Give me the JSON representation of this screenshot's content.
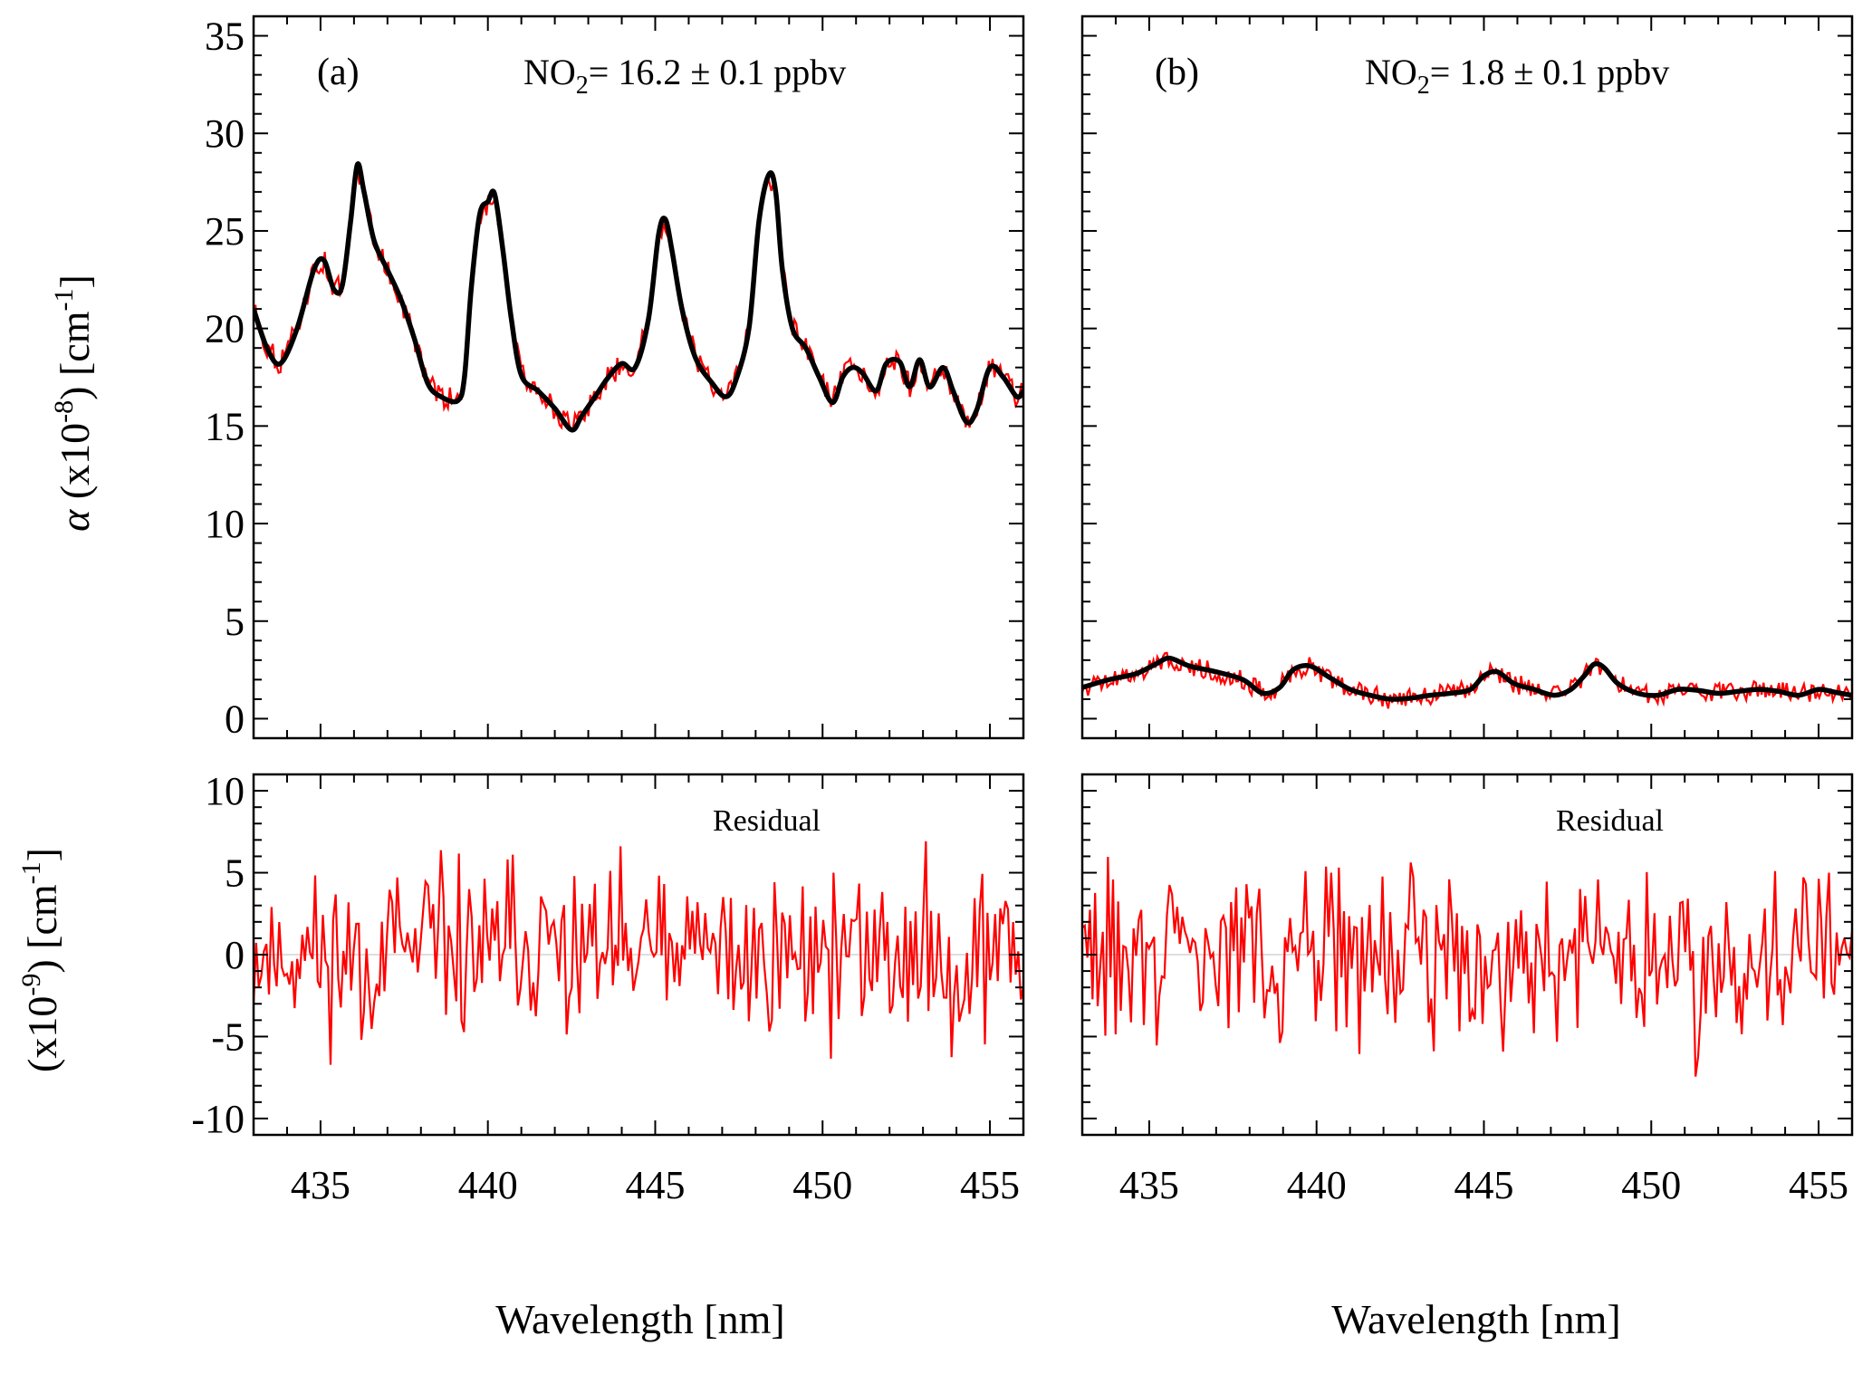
{
  "chart_data": {
    "type": "line",
    "xlabel": "Wavelength [nm]",
    "xlim": [
      433,
      456
    ],
    "x_ticks": [
      "435",
      "440",
      "445",
      "450",
      "455"
    ],
    "ylabel_top": "α (x10^-8) [cm^-1]",
    "ylabel_top_parts": {
      "symbol": "α",
      "mant": " (x10",
      "exp1": "-8",
      "unit": ") [cm",
      "exp2": "-1",
      "close": "]"
    },
    "ylabel_bottom": "(x10^-9) [cm^-1]",
    "ylabel_bottom_parts": {
      "mant": "(x10",
      "exp1": "-9",
      "unit": ") [cm",
      "exp2": "-1",
      "close": "]"
    },
    "top_ylim": [
      -1,
      36
    ],
    "top_yticks": [
      "0",
      "5",
      "10",
      "15",
      "20",
      "25",
      "30",
      "35"
    ],
    "bottom_ylim": [
      -11,
      11
    ],
    "bottom_yticks": [
      "-10",
      "-5",
      "0",
      "5",
      "10"
    ],
    "colors": {
      "measured": "#ff0000",
      "fit": "#000000",
      "residual": "#ff0000",
      "zero_line": "#bdbdbd"
    },
    "panels": [
      {
        "label": "(a)",
        "annotation": {
          "species": "NO",
          "sub": "2",
          "rest": "= 16.2 ± 0.1 ppbv"
        },
        "residual_label": "Residual",
        "fit": {
          "x": [
            433.0,
            433.4,
            433.8,
            434.3,
            434.8,
            435.1,
            435.4,
            435.65,
            435.9,
            436.1,
            436.3,
            436.6,
            437.0,
            437.4,
            437.8,
            438.2,
            438.6,
            439.1,
            439.3,
            439.5,
            439.75,
            440.0,
            440.2,
            440.45,
            440.7,
            441.0,
            441.5,
            442.0,
            442.5,
            442.8,
            443.2,
            443.6,
            444.0,
            444.4,
            444.8,
            445.1,
            445.3,
            445.5,
            445.8,
            446.2,
            446.7,
            447.1,
            447.4,
            447.8,
            448.1,
            448.4,
            448.6,
            448.8,
            449.1,
            449.5,
            449.9,
            450.3,
            450.6,
            450.9,
            451.2,
            451.6,
            451.9,
            452.3,
            452.6,
            452.9,
            453.2,
            453.6,
            453.9,
            454.3,
            454.6,
            455.0,
            455.4,
            455.8,
            456.0
          ],
          "y": [
            21.0,
            19.0,
            18.2,
            20.0,
            23.0,
            23.5,
            22.0,
            22.2,
            25.5,
            28.4,
            27.0,
            24.5,
            23.0,
            21.5,
            19.5,
            17.2,
            16.5,
            16.3,
            17.5,
            22.0,
            25.8,
            26.5,
            26.9,
            24.0,
            20.5,
            17.6,
            16.8,
            15.9,
            14.8,
            15.5,
            16.5,
            17.5,
            18.2,
            18.0,
            20.5,
            24.8,
            25.6,
            24.0,
            21.0,
            18.5,
            17.2,
            16.5,
            17.3,
            20.0,
            25.5,
            27.9,
            27.0,
            23.0,
            20.0,
            19.0,
            17.5,
            16.2,
            17.5,
            18.0,
            17.7,
            16.8,
            18.2,
            18.3,
            17.0,
            18.4,
            17.0,
            18.0,
            16.8,
            15.2,
            15.8,
            18.0,
            17.5,
            16.5,
            16.8
          ]
        },
        "measured_noise_amplitude": 0.6,
        "residual": {
          "n": 300,
          "amplitude": 4.6,
          "seed": 11
        }
      },
      {
        "label": "(b)",
        "annotation": {
          "species": "NO",
          "sub": "2",
          "rest": "= 1.8 ± 0.1 ppbv"
        },
        "residual_label": "Residual",
        "fit": {
          "x": [
            433.0,
            433.8,
            434.6,
            435.2,
            435.6,
            436.2,
            437.0,
            437.8,
            438.4,
            438.9,
            439.3,
            439.8,
            440.4,
            441.0,
            441.6,
            442.2,
            442.8,
            443.4,
            444.0,
            444.6,
            445.0,
            445.4,
            445.9,
            446.5,
            447.1,
            447.6,
            448.0,
            448.3,
            448.6,
            449.0,
            449.6,
            450.2,
            450.8,
            451.4,
            452.0,
            452.6,
            453.2,
            453.8,
            454.4,
            455.0,
            455.5,
            456.0
          ],
          "y": [
            1.6,
            2.0,
            2.3,
            2.8,
            3.1,
            2.7,
            2.4,
            2.0,
            1.3,
            1.6,
            2.5,
            2.7,
            2.1,
            1.5,
            1.2,
            1.0,
            1.05,
            1.2,
            1.3,
            1.5,
            2.2,
            2.4,
            1.8,
            1.5,
            1.2,
            1.5,
            2.2,
            2.8,
            2.6,
            1.8,
            1.3,
            1.2,
            1.5,
            1.45,
            1.3,
            1.4,
            1.5,
            1.4,
            1.2,
            1.5,
            1.35,
            1.2
          ]
        },
        "measured_noise_amplitude": 0.5,
        "residual": {
          "n": 300,
          "amplitude": 4.6,
          "seed": 29
        }
      }
    ]
  }
}
